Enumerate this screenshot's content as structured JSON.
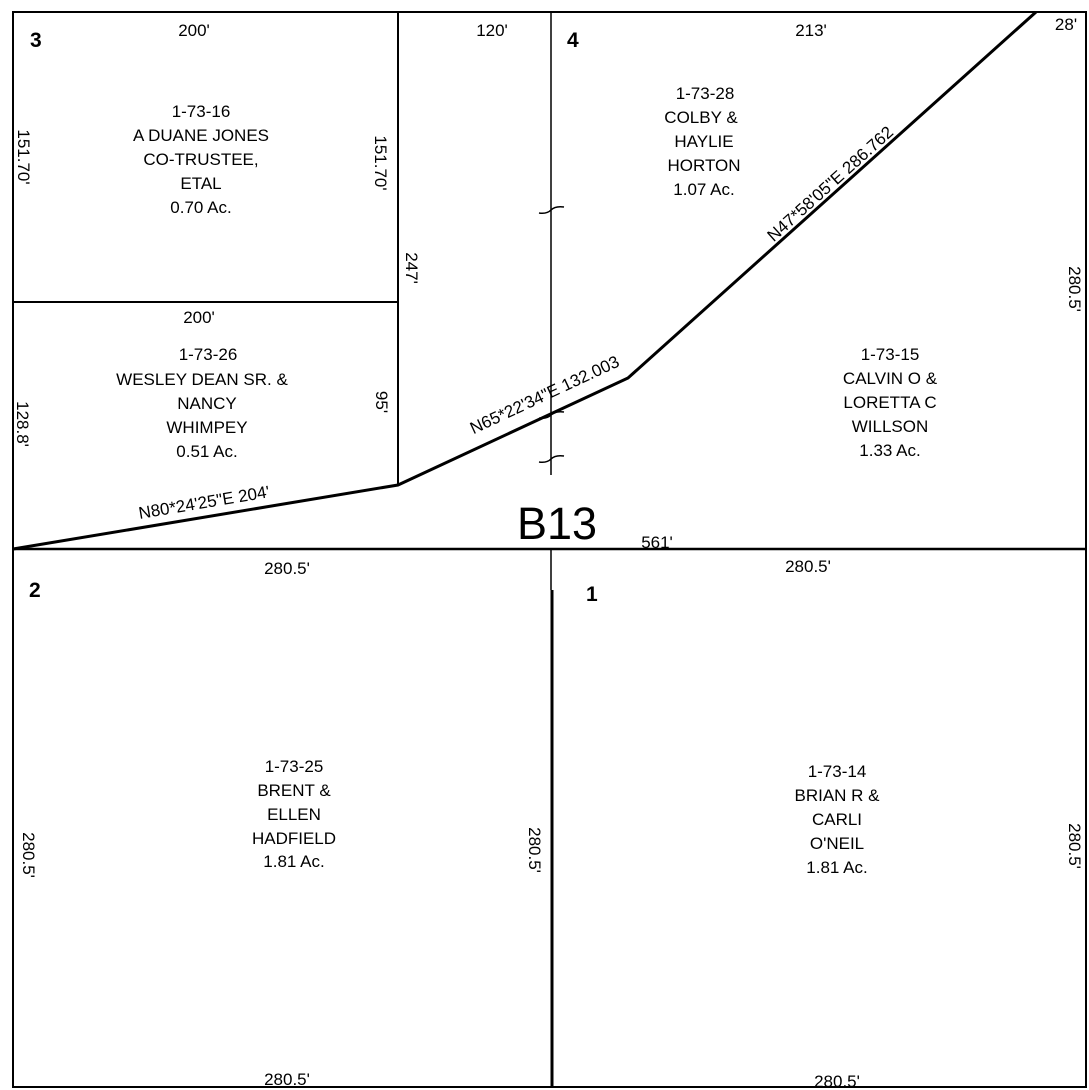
{
  "block_label": "B13",
  "lot_numbers": {
    "lot1": "1",
    "lot2": "2",
    "lot3": "3",
    "lot4": "4"
  },
  "dimensions": {
    "top_lot3": "200'",
    "top_mid": "120'",
    "top_lot4": "213'",
    "top_right": "28'",
    "lot3_left": "151.70'",
    "lot3_right": "151.70'",
    "mid_strip": "247'",
    "lot26_top": "200'",
    "lot26_left": "128.8'",
    "lot26_right": "95'",
    "right_upper": "280.5'",
    "center_line": "561'",
    "lot2_top": "280.5'",
    "lot1_top": "280.5'",
    "lot2_left": "280.5'",
    "lot2_right": "280.5'",
    "lot1_right": "280.5'",
    "lot2_bottom": "280.5'",
    "lot1_bottom": "280.5'"
  },
  "bearings": {
    "seg1": "N80*24'25\"E  204'",
    "seg2": "N65*22'34\"E  132.003",
    "seg3": "N47*58'05\"E  286.762"
  },
  "parcels": [
    {
      "id": "1-73-16",
      "owner": [
        "A DUANE JONES",
        "CO-TRUSTEE,",
        "ETAL"
      ],
      "area": "0.70 Ac."
    },
    {
      "id": "1-73-26",
      "owner": [
        "WESLEY DEAN  SR. &",
        "NANCY",
        "WHIMPEY"
      ],
      "area": "0.51 Ac."
    },
    {
      "id": "1-73-28",
      "owner": [
        "COLBY &",
        "HAYLIE",
        "HORTON"
      ],
      "area": "1.07 Ac."
    },
    {
      "id": "1-73-15",
      "owner": [
        "CALVIN O &",
        "LORETTA C",
        "WILLSON"
      ],
      "area": "1.33 Ac."
    },
    {
      "id": "1-73-25",
      "owner": [
        "BRENT &",
        "ELLEN",
        "HADFIELD"
      ],
      "area": "1.81 Ac."
    },
    {
      "id": "1-73-14",
      "owner": [
        "BRIAN R &",
        "CARLI",
        "O'NEIL"
      ],
      "area": "1.81 Ac."
    }
  ]
}
